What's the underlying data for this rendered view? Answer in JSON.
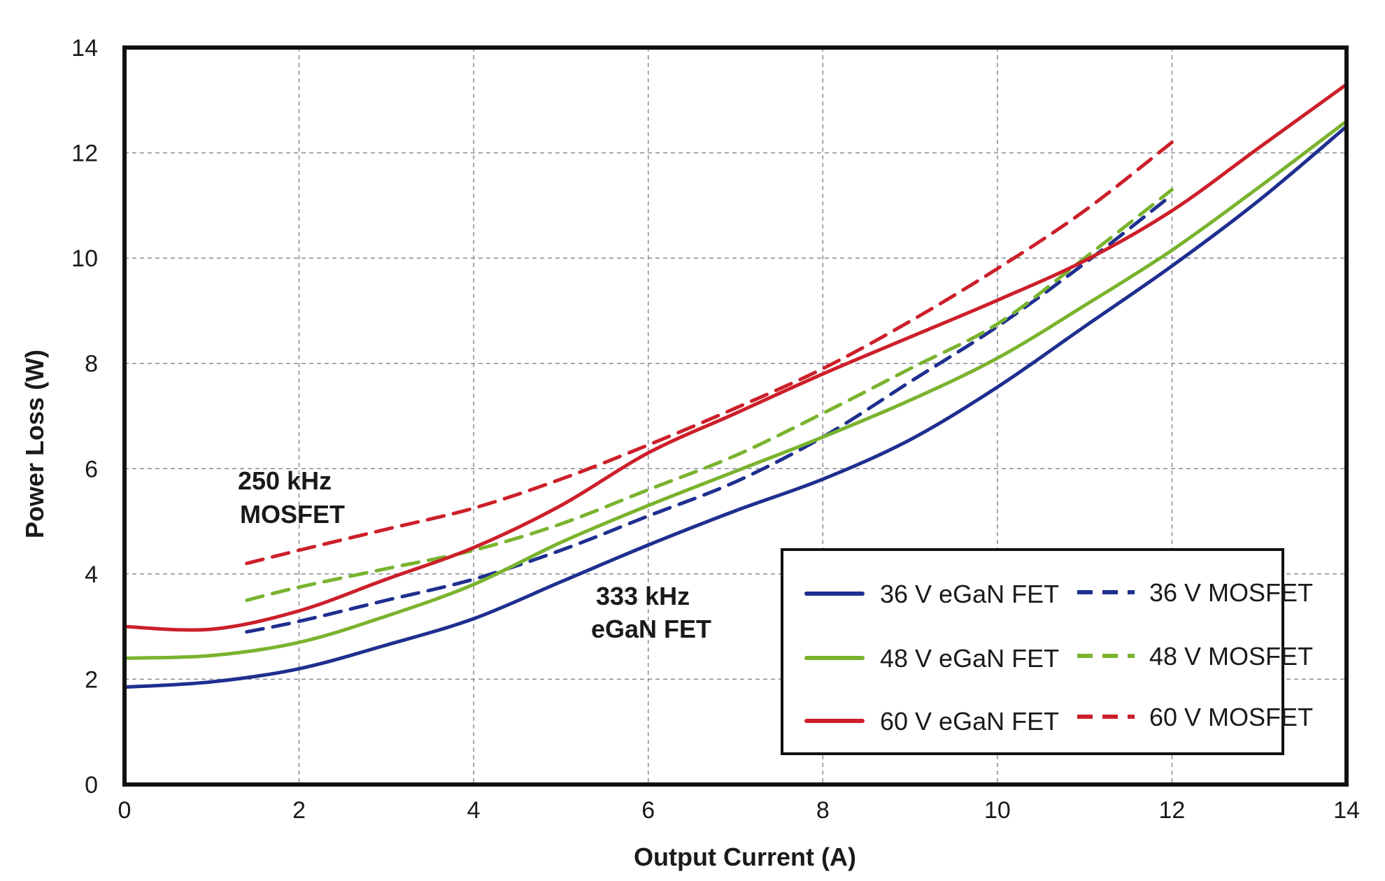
{
  "chart_data": {
    "type": "line",
    "xlabel": "Output Current (A)",
    "ylabel": "Power Loss (W)",
    "xlim": [
      0,
      14
    ],
    "ylim": [
      0,
      14
    ],
    "xticks": [
      "0",
      "2",
      "4",
      "6",
      "8",
      "10",
      "12",
      "14"
    ],
    "yticks": [
      "0",
      "2",
      "4",
      "6",
      "8",
      "10",
      "12",
      "14"
    ],
    "grid": true,
    "legend_position": "bottom-right",
    "annotations": [
      {
        "lines": [
          "250 kHz",
          "MOSFET"
        ],
        "x": 1.3,
        "y": 5.9
      },
      {
        "lines": [
          "333 kHz",
          "eGaN FET"
        ],
        "x": 5.4,
        "y": 3.7
      }
    ],
    "series": [
      {
        "name": "36 V eGaN FET",
        "color": "#1f2f8f",
        "dashed": false,
        "x": [
          0,
          1,
          2,
          3,
          4,
          5,
          6,
          7,
          8,
          9,
          10,
          11,
          12,
          13,
          14
        ],
        "y": [
          1.85,
          1.95,
          2.2,
          2.65,
          3.15,
          3.85,
          4.55,
          5.2,
          5.8,
          6.55,
          7.55,
          8.7,
          9.85,
          11.1,
          12.5
        ]
      },
      {
        "name": "36 V MOSFET",
        "color": "#1f2f8f",
        "dashed": true,
        "x": [
          1.4,
          2,
          3,
          4,
          5,
          6,
          7,
          8,
          9,
          10,
          11,
          12
        ],
        "y": [
          2.9,
          3.1,
          3.5,
          3.9,
          4.45,
          5.1,
          5.75,
          6.6,
          7.65,
          8.7,
          9.9,
          11.2
        ]
      },
      {
        "name": "48 V eGaN FET",
        "color": "#7ab32e",
        "dashed": false,
        "x": [
          0,
          1,
          2,
          3,
          4,
          5,
          6,
          7,
          8,
          9,
          10,
          11,
          12,
          13,
          14
        ],
        "y": [
          2.4,
          2.45,
          2.7,
          3.2,
          3.8,
          4.6,
          5.3,
          5.95,
          6.6,
          7.3,
          8.1,
          9.1,
          10.15,
          11.35,
          12.6
        ]
      },
      {
        "name": "48 V MOSFET",
        "color": "#7ab32e",
        "dashed": true,
        "x": [
          1.4,
          2,
          3,
          4,
          5,
          6,
          7,
          8,
          9,
          10,
          11,
          12
        ],
        "y": [
          3.5,
          3.75,
          4.1,
          4.45,
          4.95,
          5.6,
          6.25,
          7.05,
          7.9,
          8.75,
          10.0,
          11.3
        ]
      },
      {
        "name": "60 V eGaN FET",
        "color": "#cc1f2a",
        "dashed": false,
        "x": [
          0,
          1,
          2,
          3,
          4,
          5,
          6,
          7,
          8,
          9,
          10,
          11,
          12,
          13,
          14
        ],
        "y": [
          3.0,
          2.95,
          3.3,
          3.9,
          4.5,
          5.3,
          6.3,
          7.05,
          7.8,
          8.5,
          9.2,
          9.95,
          10.9,
          12.1,
          13.3
        ]
      },
      {
        "name": "60 V MOSFET",
        "color": "#cc1f2a",
        "dashed": true,
        "x": [
          1.4,
          2,
          3,
          4,
          5,
          6,
          7,
          8,
          9,
          10,
          11,
          12
        ],
        "y": [
          4.2,
          4.45,
          4.85,
          5.25,
          5.8,
          6.45,
          7.15,
          7.9,
          8.8,
          9.8,
          10.9,
          12.2
        ]
      }
    ]
  },
  "legend": {
    "left_column": [
      "36 V eGaN FET",
      "48 V eGaN FET",
      "60 V eGaN FET"
    ],
    "right_column": [
      "36 V MOSFET",
      "48 V MOSFET",
      "60 V MOSFET"
    ]
  }
}
